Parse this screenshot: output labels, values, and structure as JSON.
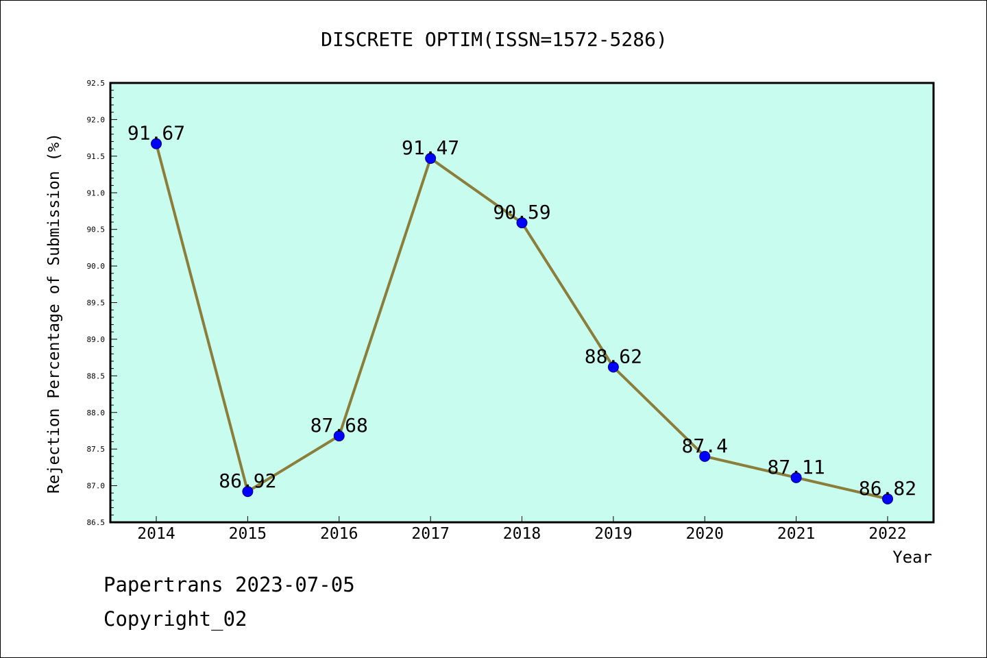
{
  "chart_data": {
    "type": "line",
    "title": "DISCRETE OPTIM(ISSN=1572-5286)",
    "xlabel": "Year",
    "ylabel": "Rejection Percentage of Submission (%)",
    "x": [
      "2014",
      "2015",
      "2016",
      "2017",
      "2018",
      "2019",
      "2020",
      "2021",
      "2022"
    ],
    "series": [
      {
        "values": [
          91.67,
          86.92,
          87.68,
          91.47,
          90.59,
          88.62,
          87.4,
          87.11,
          86.82
        ],
        "labels": [
          "91.67",
          "86.92",
          "87.68",
          "91.47",
          "90.59",
          "88.62",
          "87.4",
          "87.11",
          "86.82"
        ]
      }
    ],
    "ylim": [
      86.5,
      92.5
    ],
    "yticks": [
      "86.5",
      "87.0",
      "87.5",
      "88.0",
      "88.5",
      "89.0",
      "89.5",
      "90.0",
      "90.5",
      "91.0",
      "91.5",
      "92.0",
      "92.5"
    ],
    "grid": false,
    "colors": {
      "plot_background": "#c8fcee",
      "line": "#8b7d3a",
      "marker": "#0000ff"
    }
  },
  "footer": {
    "line1": "Papertrans 2023-07-05",
    "line2": "Copyright_02"
  }
}
